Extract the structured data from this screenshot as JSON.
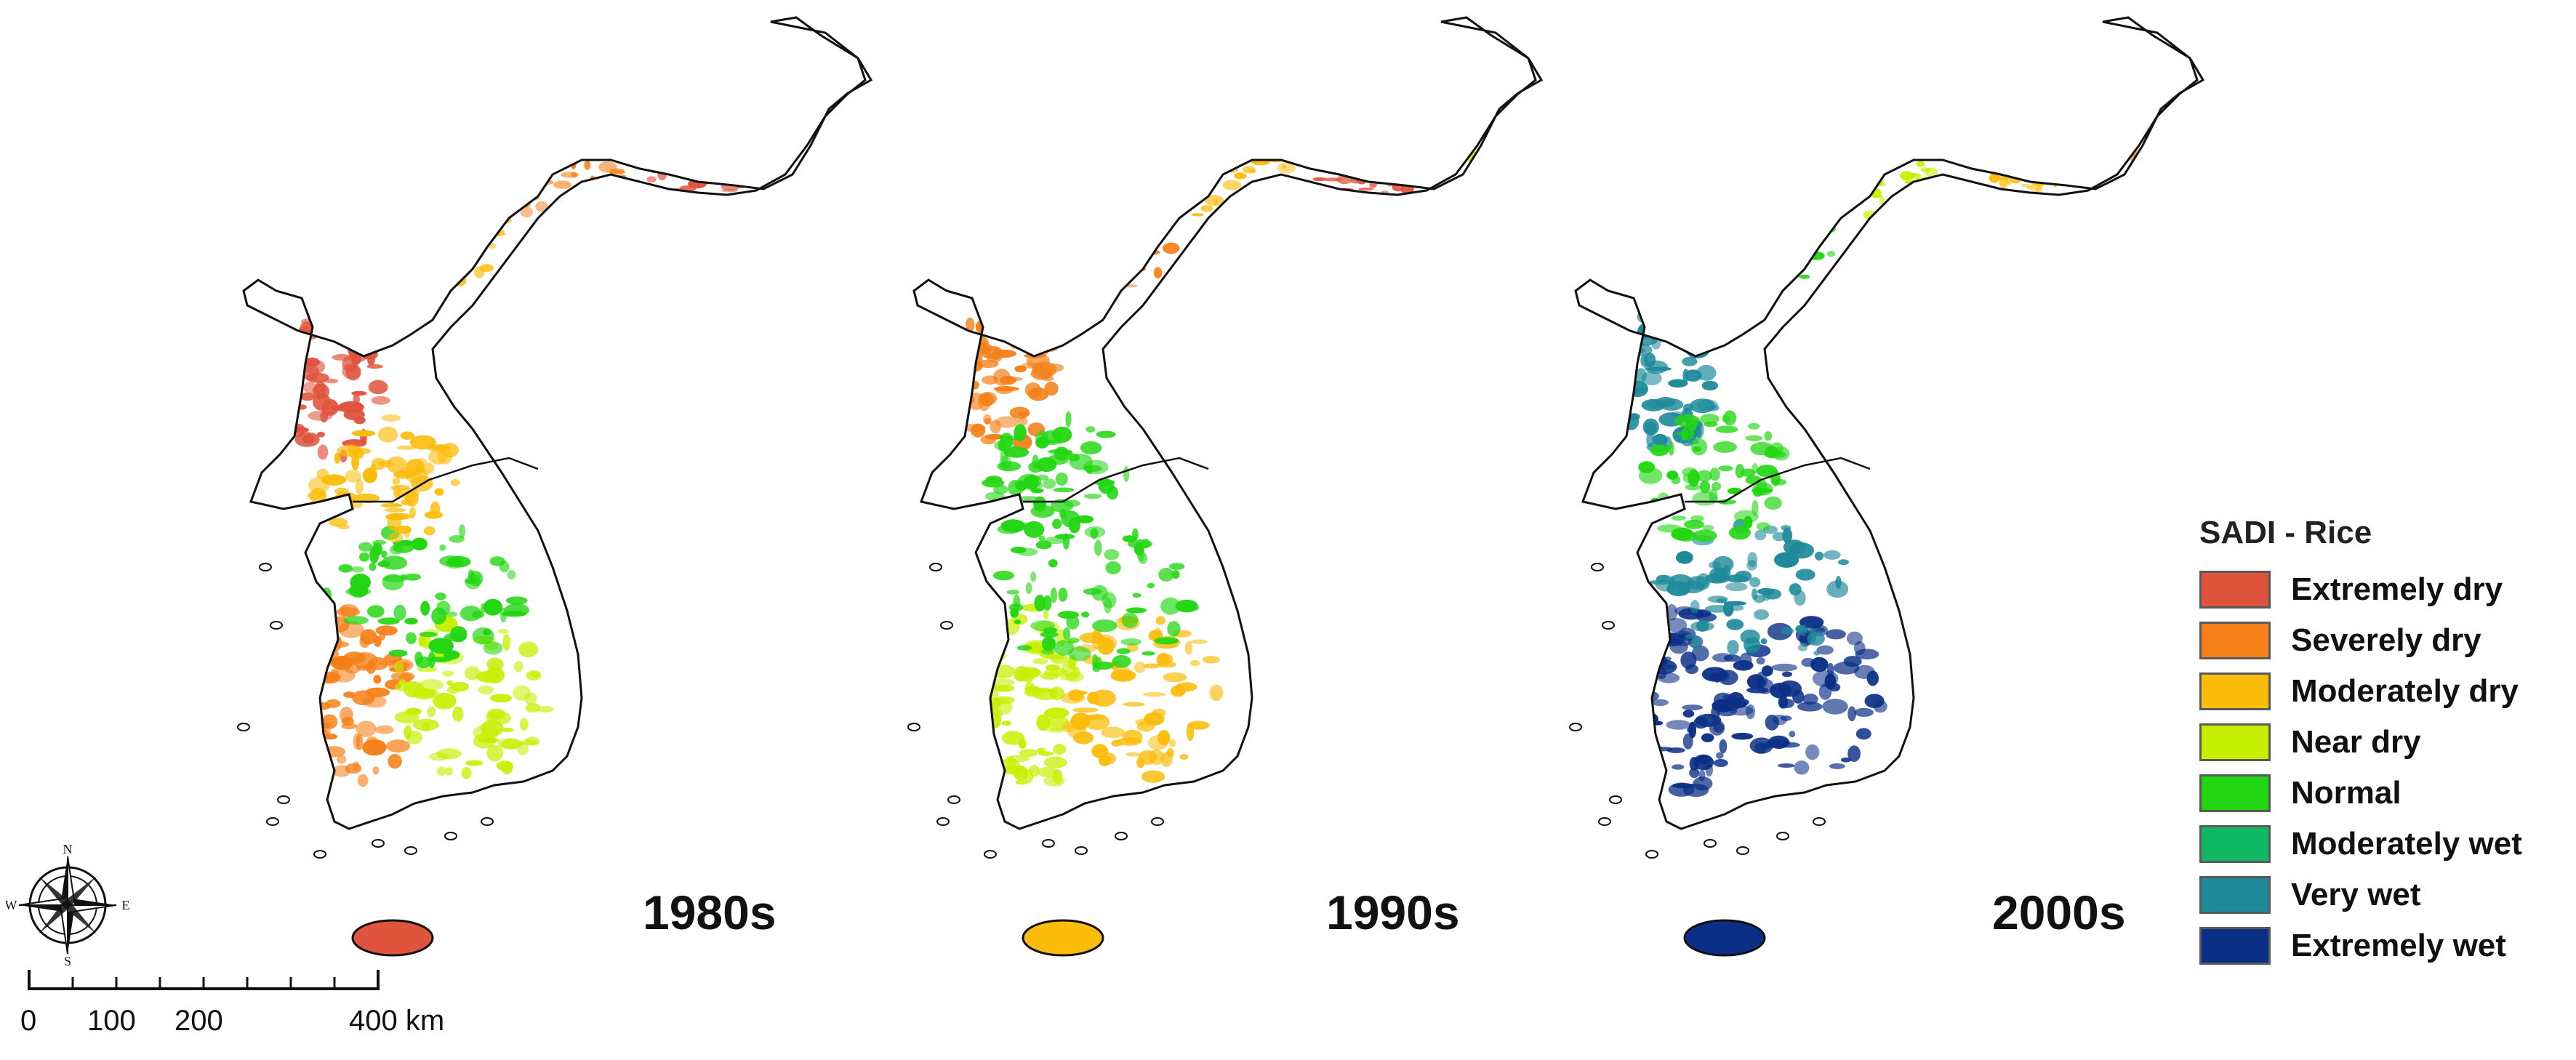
{
  "maps": [
    {
      "decade": "1980s",
      "palette": [
        "#f57f17",
        "#c6ef00",
        "#22d611",
        "#e0533c",
        "#fbbc0a"
      ],
      "north_palette": [
        "#fbbc0a",
        "#f57f17",
        "#e0533c",
        "#c6ef00"
      ],
      "jeju_color": "#e0533c"
    },
    {
      "decade": "1990s",
      "palette": [
        "#c6ef00",
        "#fbbc0a",
        "#22d611",
        "#f57f17",
        "#22d611"
      ],
      "north_palette": [
        "#f57f17",
        "#fbbc0a",
        "#e0533c",
        "#c6ef00"
      ],
      "jeju_color": "#fbbc0a"
    },
    {
      "decade": "2000s",
      "palette": [
        "#0b2f86",
        "#0b2f86",
        "#1e8a9a",
        "#1e8a9a",
        "#22d611"
      ],
      "north_palette": [
        "#22d611",
        "#c6ef00",
        "#fbbc0a",
        "#f57f17"
      ],
      "jeju_color": "#0b2f86"
    }
  ],
  "legend": {
    "title": "SADI - Rice",
    "items": [
      {
        "label": "Extremely dry",
        "color": "#e0533c"
      },
      {
        "label": "Severely dry",
        "color": "#f57f17"
      },
      {
        "label": "Moderately dry",
        "color": "#fbbc0a"
      },
      {
        "label": "Near dry",
        "color": "#c6ef00"
      },
      {
        "label": "Normal",
        "color": "#22d611"
      },
      {
        "label": "Moderately wet",
        "color": "#11b863"
      },
      {
        "label": "Very wet",
        "color": "#1e8a9a"
      },
      {
        "label": "Extremely wet",
        "color": "#0b2f86"
      }
    ]
  },
  "compass": {
    "n": "N",
    "e": "E",
    "s": "S",
    "w": "W"
  },
  "scale_bar": {
    "labels": [
      "0",
      "100",
      "200",
      "400 km"
    ],
    "values": [
      0,
      100,
      200,
      400
    ]
  }
}
